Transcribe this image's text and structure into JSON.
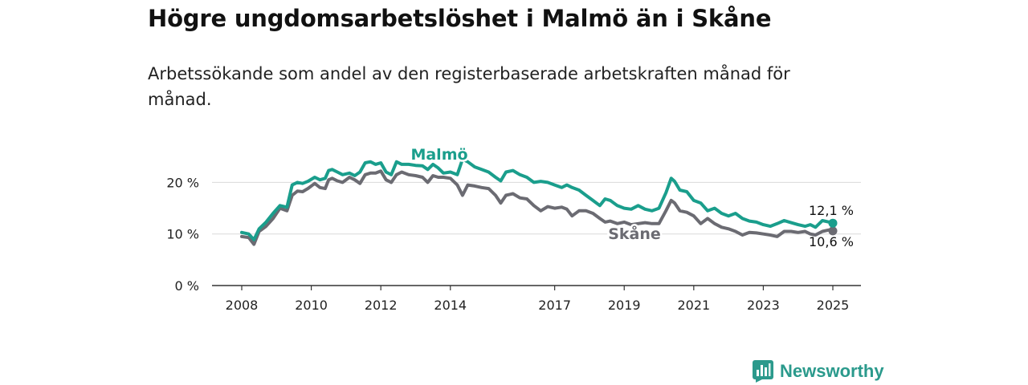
{
  "title": "Högre ungdomsarbetslöshet i Malmö än i Skåne",
  "subtitle": "Arbetssökande som andel av den registerbaserade arbetskraften månad för månad.",
  "brand": {
    "name": "Newsworthy",
    "icon": "newsworthy-logo-icon",
    "color": "#2b9a8c"
  },
  "chart_data": {
    "type": "line",
    "title": "Högre ungdomsarbetslöshet i Malmö än i Skåne",
    "xlabel": "",
    "ylabel": "",
    "xlim": [
      2008,
      2025
    ],
    "ylim": [
      0,
      25
    ],
    "grid": "horizontal",
    "y_ticks": [
      {
        "value": 0,
        "label": "0 %"
      },
      {
        "value": 10,
        "label": "10 %"
      },
      {
        "value": 20,
        "label": "20 %"
      }
    ],
    "x_ticks": [
      {
        "value": 2008,
        "label": "2008"
      },
      {
        "value": 2010,
        "label": "2010"
      },
      {
        "value": 2012,
        "label": "2012"
      },
      {
        "value": 2014,
        "label": "2014"
      },
      {
        "value": 2017,
        "label": "2017"
      },
      {
        "value": 2019,
        "label": "2019"
      },
      {
        "value": 2021,
        "label": "2021"
      },
      {
        "value": 2023,
        "label": "2023"
      },
      {
        "value": 2025,
        "label": "2025"
      }
    ],
    "series": [
      {
        "name": "Malmö",
        "color": "#1a9e8c",
        "end_label": "12,1 %",
        "x": [
          2008.0,
          2008.2,
          2008.35,
          2008.5,
          2008.7,
          2008.9,
          2009.1,
          2009.3,
          2009.45,
          2009.6,
          2009.75,
          2009.9,
          2010.1,
          2010.25,
          2010.4,
          2010.5,
          2010.6,
          2010.75,
          2010.9,
          2011.1,
          2011.25,
          2011.4,
          2011.55,
          2011.7,
          2011.85,
          2012.0,
          2012.15,
          2012.3,
          2012.45,
          2012.6,
          2012.8,
          2013.0,
          2013.2,
          2013.35,
          2013.5,
          2013.65,
          2013.8,
          2014.0,
          2014.2,
          2014.35,
          2014.5,
          2014.7,
          2014.9,
          2015.1,
          2015.3,
          2015.45,
          2015.6,
          2015.8,
          2016.0,
          2016.2,
          2016.4,
          2016.6,
          2016.8,
          2017.0,
          2017.2,
          2017.35,
          2017.5,
          2017.7,
          2017.9,
          2018.1,
          2018.3,
          2018.45,
          2018.6,
          2018.8,
          2019.0,
          2019.2,
          2019.4,
          2019.6,
          2019.8,
          2020.0,
          2020.2,
          2020.35,
          2020.45,
          2020.6,
          2020.8,
          2021.0,
          2021.2,
          2021.4,
          2021.6,
          2021.8,
          2022.0,
          2022.2,
          2022.4,
          2022.6,
          2022.8,
          2023.0,
          2023.2,
          2023.4,
          2023.6,
          2023.8,
          2024.0,
          2024.2,
          2024.35,
          2024.5,
          2024.7,
          2024.9,
          2025.0
        ],
        "values": [
          10.3,
          10.0,
          8.9,
          11.0,
          12.3,
          14.0,
          15.5,
          15.2,
          19.5,
          20.0,
          19.8,
          20.2,
          21.0,
          20.5,
          20.8,
          22.3,
          22.5,
          22.0,
          21.5,
          21.8,
          21.3,
          22.0,
          23.8,
          24.0,
          23.5,
          23.8,
          22.0,
          21.5,
          24.0,
          23.5,
          23.5,
          23.3,
          23.2,
          22.5,
          23.5,
          22.8,
          21.8,
          22.0,
          21.5,
          24.5,
          24.0,
          23.0,
          22.5,
          22.0,
          21.0,
          20.3,
          22.0,
          22.3,
          21.5,
          21.0,
          20.0,
          20.2,
          20.0,
          19.5,
          19.0,
          19.5,
          19.0,
          18.5,
          17.5,
          16.5,
          15.5,
          16.8,
          16.5,
          15.5,
          15.0,
          14.8,
          15.5,
          14.8,
          14.5,
          15.0,
          18.0,
          20.8,
          20.2,
          18.5,
          18.2,
          16.5,
          16.0,
          14.5,
          15.0,
          14.0,
          13.5,
          14.0,
          13.0,
          12.5,
          12.3,
          11.8,
          11.5,
          12.0,
          12.6,
          12.2,
          11.8,
          11.5,
          11.8,
          11.3,
          12.6,
          12.3,
          12.1
        ]
      },
      {
        "name": "Skåne",
        "color": "#6b6b72",
        "end_label": "10,6 %",
        "x": [
          2008.0,
          2008.2,
          2008.35,
          2008.5,
          2008.7,
          2008.9,
          2009.1,
          2009.3,
          2009.45,
          2009.6,
          2009.75,
          2009.9,
          2010.1,
          2010.25,
          2010.4,
          2010.5,
          2010.6,
          2010.75,
          2010.9,
          2011.1,
          2011.25,
          2011.4,
          2011.55,
          2011.7,
          2011.85,
          2012.0,
          2012.15,
          2012.3,
          2012.45,
          2012.6,
          2012.8,
          2013.0,
          2013.2,
          2013.35,
          2013.5,
          2013.65,
          2013.8,
          2014.0,
          2014.2,
          2014.35,
          2014.5,
          2014.7,
          2014.9,
          2015.1,
          2015.3,
          2015.45,
          2015.6,
          2015.8,
          2016.0,
          2016.2,
          2016.4,
          2016.6,
          2016.8,
          2017.0,
          2017.2,
          2017.35,
          2017.5,
          2017.7,
          2017.9,
          2018.1,
          2018.3,
          2018.45,
          2018.6,
          2018.8,
          2019.0,
          2019.2,
          2019.4,
          2019.6,
          2019.8,
          2020.0,
          2020.2,
          2020.35,
          2020.45,
          2020.6,
          2020.8,
          2021.0,
          2021.2,
          2021.4,
          2021.6,
          2021.8,
          2022.0,
          2022.2,
          2022.4,
          2022.6,
          2022.8,
          2023.0,
          2023.2,
          2023.4,
          2023.6,
          2023.8,
          2024.0,
          2024.2,
          2024.35,
          2024.5,
          2024.7,
          2024.9,
          2025.0
        ],
        "values": [
          9.5,
          9.3,
          8.0,
          10.5,
          11.5,
          13.0,
          15.0,
          14.5,
          17.5,
          18.3,
          18.2,
          18.8,
          19.8,
          19.0,
          18.8,
          20.5,
          20.8,
          20.3,
          20.0,
          21.0,
          20.5,
          19.8,
          21.5,
          21.8,
          21.8,
          22.2,
          20.5,
          20.0,
          21.5,
          22.0,
          21.5,
          21.3,
          21.0,
          20.0,
          21.3,
          21.0,
          21.0,
          20.8,
          19.5,
          17.5,
          19.5,
          19.3,
          19.0,
          18.8,
          17.5,
          16.0,
          17.5,
          17.8,
          17.0,
          16.8,
          15.5,
          14.5,
          15.3,
          15.0,
          15.2,
          14.8,
          13.5,
          14.5,
          14.5,
          14.0,
          13.0,
          12.3,
          12.5,
          12.0,
          12.3,
          11.8,
          12.0,
          12.2,
          12.0,
          12.0,
          14.5,
          16.5,
          16.0,
          14.5,
          14.2,
          13.5,
          12.0,
          13.0,
          12.0,
          11.3,
          11.0,
          10.5,
          9.8,
          10.3,
          10.2,
          10.0,
          9.8,
          9.5,
          10.5,
          10.5,
          10.3,
          10.5,
          10.0,
          9.8,
          10.5,
          10.8,
          10.6
        ]
      }
    ]
  }
}
